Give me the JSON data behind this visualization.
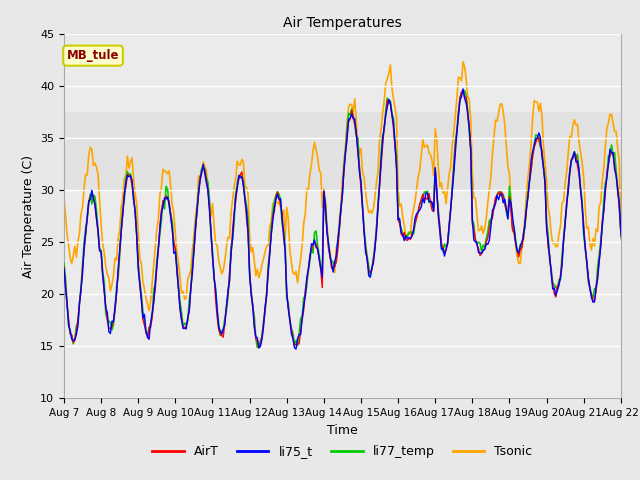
{
  "title": "Air Temperatures",
  "xlabel": "Time",
  "ylabel": "Air Temperature (C)",
  "ylim": [
    10,
    45
  ],
  "site_label": "MB_tule",
  "site_label_color": "#8B0000",
  "site_label_bg": "#FFFFCC",
  "site_label_border": "#CCCC00",
  "legend_entries": [
    "AirT",
    "li75_t",
    "li77_temp",
    "Tsonic"
  ],
  "line_colors": [
    "#FF0000",
    "#0000FF",
    "#00CC00",
    "#FFA500"
  ],
  "background_color": "#E8E8E8",
  "plot_bg_color": "#EBEBEB",
  "xticks": [
    7,
    8,
    9,
    10,
    11,
    12,
    13,
    14,
    15,
    16,
    17,
    18,
    19,
    20,
    21,
    22
  ],
  "xtick_labels": [
    "Aug 7",
    "Aug 8",
    "Aug 9",
    "Aug 10",
    "Aug 11",
    "Aug 12",
    "Aug 13",
    "Aug 14",
    "Aug 15",
    "Aug 16",
    "Aug 17",
    "Aug 18",
    "Aug 19",
    "Aug 20",
    "Aug 21",
    "Aug 22"
  ],
  "yticks": [
    10,
    15,
    20,
    25,
    30,
    35,
    40,
    45
  ],
  "grid_color": "#FFFFFF",
  "grid_lw": 1.0,
  "shade_band_lo": 30,
  "shade_band_hi": 37.5,
  "shade_color": "#DCDCDC"
}
